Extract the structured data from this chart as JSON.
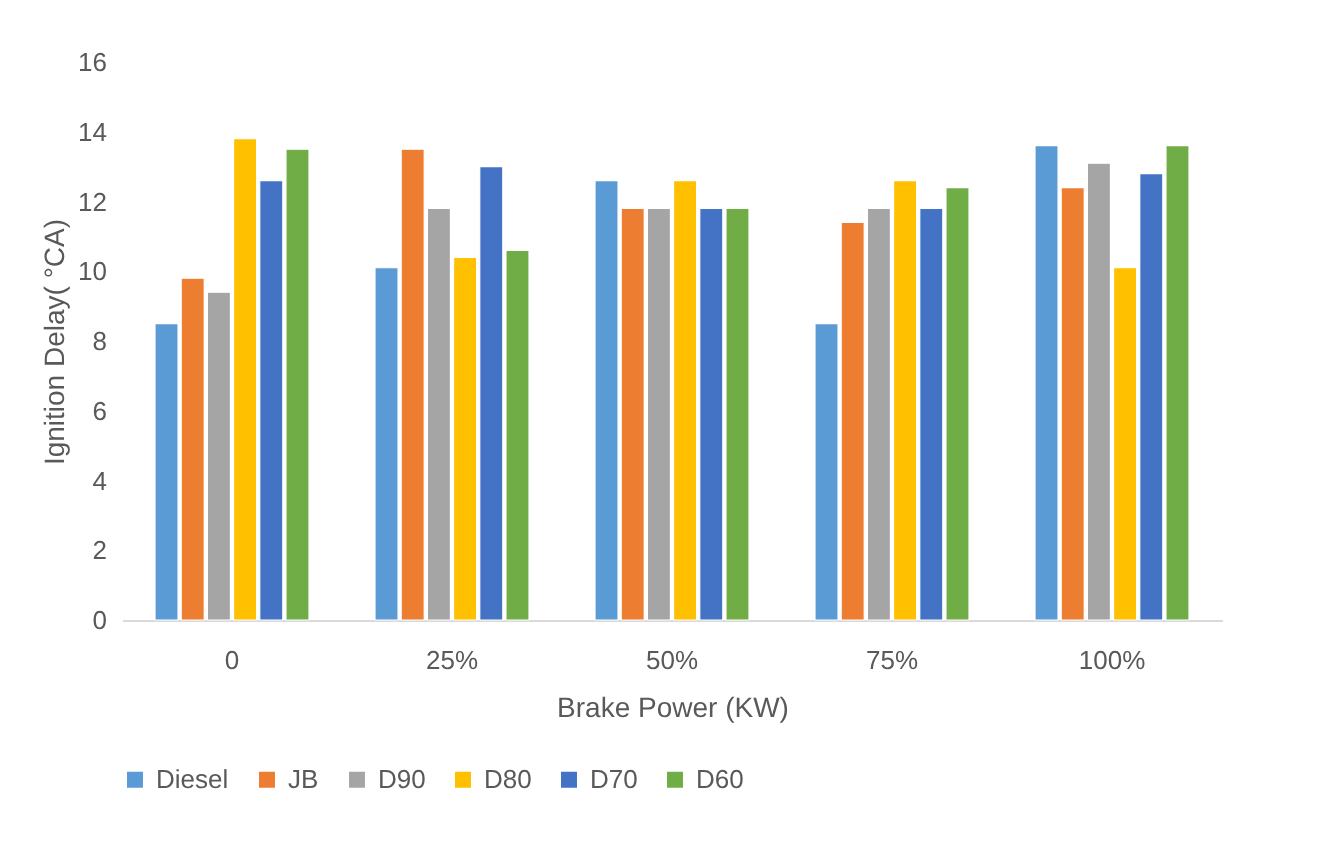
{
  "chart_data": {
    "type": "bar",
    "xlabel": "Brake Power (KW)",
    "ylabel": "Ignition Delay( °CA)",
    "categories": [
      "0",
      "25%",
      "50%",
      "75%",
      "100%"
    ],
    "series": [
      {
        "name": "Diesel",
        "color": "#5b9bd5",
        "values": [
          8.5,
          10.1,
          12.6,
          8.5,
          13.6
        ]
      },
      {
        "name": "JB",
        "color": "#ed7d31",
        "values": [
          9.8,
          13.5,
          11.8,
          11.4,
          12.4
        ]
      },
      {
        "name": "D90",
        "color": "#a5a5a5",
        "values": [
          9.4,
          11.8,
          11.8,
          11.8,
          13.1
        ]
      },
      {
        "name": "D80",
        "color": "#ffc000",
        "values": [
          13.8,
          10.4,
          12.6,
          12.6,
          10.1
        ]
      },
      {
        "name": "D70",
        "color": "#4472c4",
        "values": [
          12.6,
          13.0,
          11.8,
          11.8,
          12.8
        ]
      },
      {
        "name": "D60",
        "color": "#70ad47",
        "values": [
          13.5,
          10.6,
          11.8,
          12.4,
          13.6
        ]
      }
    ],
    "ylim": [
      0,
      16
    ],
    "yticks": [
      0,
      2,
      4,
      6,
      8,
      10,
      12,
      14,
      16
    ],
    "grid": false,
    "legend": "bottom"
  }
}
